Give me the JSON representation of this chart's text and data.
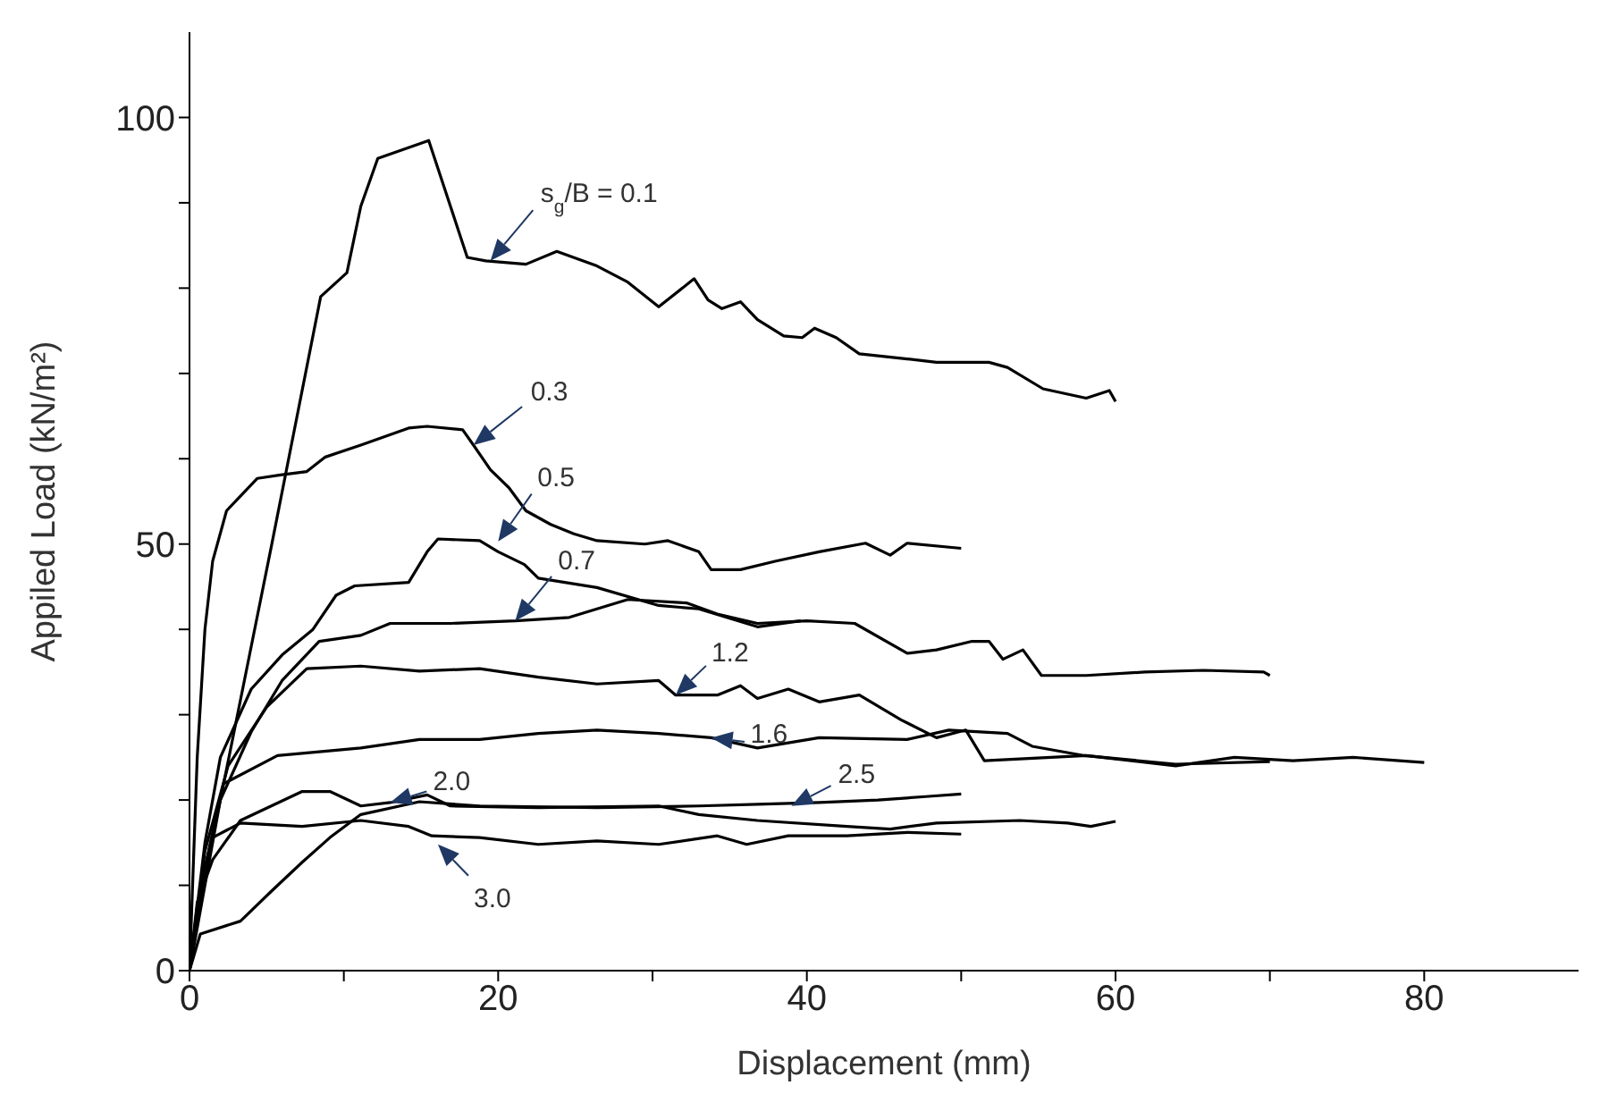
{
  "chart_data": {
    "type": "line",
    "xlabel": "Displacement (mm)",
    "ylabel": "Appiled Load (kN/m²)",
    "xlim": [
      0,
      90
    ],
    "ylim": [
      0,
      110
    ],
    "xticks": [
      0,
      {
        "value": 10,
        "label": null
      },
      20,
      {
        "value": 30,
        "label": null
      },
      40,
      {
        "value": 50,
        "label": null
      },
      60,
      {
        "value": 70,
        "label": null
      },
      80
    ],
    "yticks": [
      0,
      {
        "value": 10,
        "label": null
      },
      {
        "value": 20,
        "label": null
      },
      {
        "value": 30,
        "label": null
      },
      {
        "value": 40,
        "label": null
      },
      50,
      {
        "value": 60,
        "label": null
      },
      {
        "value": 70,
        "label": null
      },
      {
        "value": 80,
        "label": null
      },
      {
        "value": 90,
        "label": null
      },
      100
    ],
    "grid": false,
    "legend": false,
    "marker": "none",
    "series": [
      {
        "color": "#000000",
        "x": [
          0,
          2,
          4,
          5.3,
          8.5,
          10.2,
          11.1,
          12.2,
          15.5,
          18,
          19.2,
          21.8,
          23.8,
          26.4,
          28.4,
          30.4,
          32.7,
          33.6,
          34.5,
          35.7,
          36.8,
          38.5,
          39.7,
          40.5,
          41.9,
          43.4,
          46.5,
          48.4,
          51.8,
          53,
          55.3,
          58.1,
          59.6,
          60
        ],
        "values": [
          0,
          20,
          38,
          49.7,
          79,
          81.8,
          89.6,
          95.2,
          97.3,
          83.6,
          83.2,
          82.8,
          84.3,
          82.6,
          80.7,
          77.8,
          81.1,
          78.6,
          77.6,
          78.4,
          76.3,
          74.4,
          74.2,
          75.3,
          74.2,
          72.3,
          71.7,
          71.3,
          71.3,
          70.7,
          68.2,
          67.1,
          68,
          66.7
        ]
      },
      {
        "color": "#000000",
        "x": [
          0,
          0.5,
          1,
          1.5,
          2.4,
          4.4,
          5.9,
          7.6,
          8.8,
          11.1,
          14.2,
          15.4,
          17.7,
          18.4,
          19.5,
          20.7,
          21.8,
          23.4,
          24.9,
          26.4,
          29.5,
          31,
          33,
          33.8,
          35.7,
          38,
          40.8,
          43.8,
          45.4,
          46.5,
          50
        ],
        "values": [
          0,
          25,
          40,
          48,
          53.9,
          57.7,
          58.1,
          58.5,
          60.2,
          61.6,
          63.6,
          63.8,
          63.4,
          61.6,
          58.7,
          56.6,
          53.9,
          52.3,
          51.2,
          50.4,
          50,
          50.4,
          49.1,
          47,
          47,
          48,
          49.1,
          50.1,
          48.7,
          50.1,
          49.5
        ]
      },
      {
        "color": "#000000",
        "x": [
          0,
          1,
          2,
          4,
          6,
          8,
          9.5,
          10.7,
          14.2,
          15.4,
          16.1,
          18.8,
          20,
          21.7,
          22.6,
          26.4,
          30.4,
          33,
          36.8,
          39.6
        ],
        "values": [
          0,
          15,
          25,
          33,
          37,
          40,
          44,
          45.1,
          45.5,
          49.1,
          50.6,
          50.4,
          49.1,
          47.6,
          46,
          44.9,
          42.8,
          42.4,
          40.3,
          41
        ]
      },
      {
        "color": "#000000",
        "x": [
          0,
          1,
          2,
          4,
          6,
          8.4,
          11.1,
          13,
          16.9,
          21.1,
          24.6,
          28.4,
          32.2,
          34.2,
          36.8,
          40,
          43.1,
          46.5,
          48.4,
          50.7,
          51.8,
          52.7,
          54,
          55.2,
          58.1,
          61.9,
          65.7,
          69.6,
          70
        ],
        "values": [
          0,
          12,
          20,
          28,
          34,
          38.6,
          39.3,
          40.7,
          40.7,
          41,
          41.4,
          43.5,
          43.1,
          41.8,
          40.7,
          41,
          40.7,
          37.2,
          37.6,
          38.6,
          38.6,
          36.5,
          37.6,
          34.6,
          34.6,
          35,
          35.2,
          35,
          34.6
        ]
      },
      {
        "color": "#000000",
        "x": [
          0,
          1,
          2.5,
          5,
          7.6,
          11.1,
          14.9,
          18.8,
          22.6,
          26.4,
          30.4,
          31.5,
          34.2,
          35.7,
          36.8,
          38.8,
          40.8,
          43.4,
          46.1,
          48.4,
          50.3,
          51.5,
          58.1,
          63.9,
          67.7,
          71.5,
          75.4,
          80
        ],
        "values": [
          0,
          14,
          24,
          30.9,
          35.4,
          35.7,
          35.1,
          35.4,
          34.4,
          33.6,
          34,
          32.3,
          32.3,
          33.4,
          31.9,
          33,
          31.5,
          32.3,
          29.4,
          27.3,
          28.2,
          24.6,
          25.2,
          24,
          25,
          24.6,
          25,
          24.4
        ]
      },
      {
        "color": "#000000",
        "x": [
          0,
          1,
          2.2,
          5.7,
          11.1,
          14.9,
          18.8,
          22.6,
          26.4,
          30.4,
          33.8,
          36.8,
          40.8,
          46.5,
          49.2,
          53,
          54.6,
          58,
          63.9,
          70
        ],
        "values": [
          0,
          12,
          21.9,
          25.2,
          26.1,
          27.1,
          27.1,
          27.8,
          28.2,
          27.8,
          27.3,
          26.1,
          27.3,
          27.1,
          28.2,
          27.8,
          26.3,
          25.2,
          24.2,
          24.5
        ]
      },
      {
        "color": "#000000",
        "x": [
          0,
          0.5,
          1.5,
          3.3,
          7.3,
          9.1,
          11.1,
          13,
          15.4,
          16.9,
          22.6,
          30.4,
          33,
          36.8,
          42.6,
          45.4,
          48.4,
          53.8,
          56.9,
          58.4,
          60
        ],
        "values": [
          0,
          8,
          13,
          17.6,
          21,
          21,
          19.3,
          19.7,
          20.6,
          19.3,
          19.1,
          19.3,
          18.3,
          17.6,
          16.9,
          16.6,
          17.3,
          17.6,
          17.3,
          16.9,
          17.5
        ]
      },
      {
        "color": "#000000",
        "x": [
          0,
          0.7,
          3.3,
          5.3,
          7.3,
          9.1,
          11.1,
          14.9,
          18.8,
          26.4,
          33,
          36.8,
          40.8,
          44.6,
          47.7,
          50
        ],
        "values": [
          0,
          4.3,
          5.8,
          9.3,
          12.7,
          15.6,
          18.3,
          19.8,
          19.3,
          19.1,
          19.3,
          19.5,
          19.7,
          20,
          20.4,
          20.7
        ]
      },
      {
        "color": "#000000",
        "x": [
          0,
          0.5,
          1,
          1.5,
          3.3,
          7.3,
          11.1,
          14.2,
          15.7,
          18.8,
          22.6,
          26.4,
          30.4,
          34.2,
          36.1,
          38.8,
          42.6,
          46.5,
          50
        ],
        "values": [
          0,
          6,
          11,
          15.6,
          17.3,
          16.9,
          17.6,
          16.9,
          15.8,
          15.6,
          14.8,
          15.2,
          14.8,
          15.8,
          14.8,
          15.8,
          15.8,
          16.2,
          16
        ]
      }
    ],
    "annotations": [
      {
        "text": "s$_{g}$/B = 0.1",
        "x": 19.5,
        "y": 83.2
      },
      {
        "text": "0.3",
        "x": 18.4,
        "y": 61.6
      },
      {
        "text": "0.5",
        "x": 20,
        "y": 50.3
      },
      {
        "text": "0.7",
        "x": 21.1,
        "y": 41
      },
      {
        "text": "1.2",
        "x": 31.5,
        "y": 32.3
      },
      {
        "text": "1.6",
        "x": 33.8,
        "y": 27.3
      },
      {
        "text": "2.0",
        "x": 13,
        "y": 19.7
      },
      {
        "text": "2.5",
        "x": 39,
        "y": 19.3
      },
      {
        "text": "3.0",
        "x": 16.1,
        "y": 14.8
      }
    ]
  }
}
